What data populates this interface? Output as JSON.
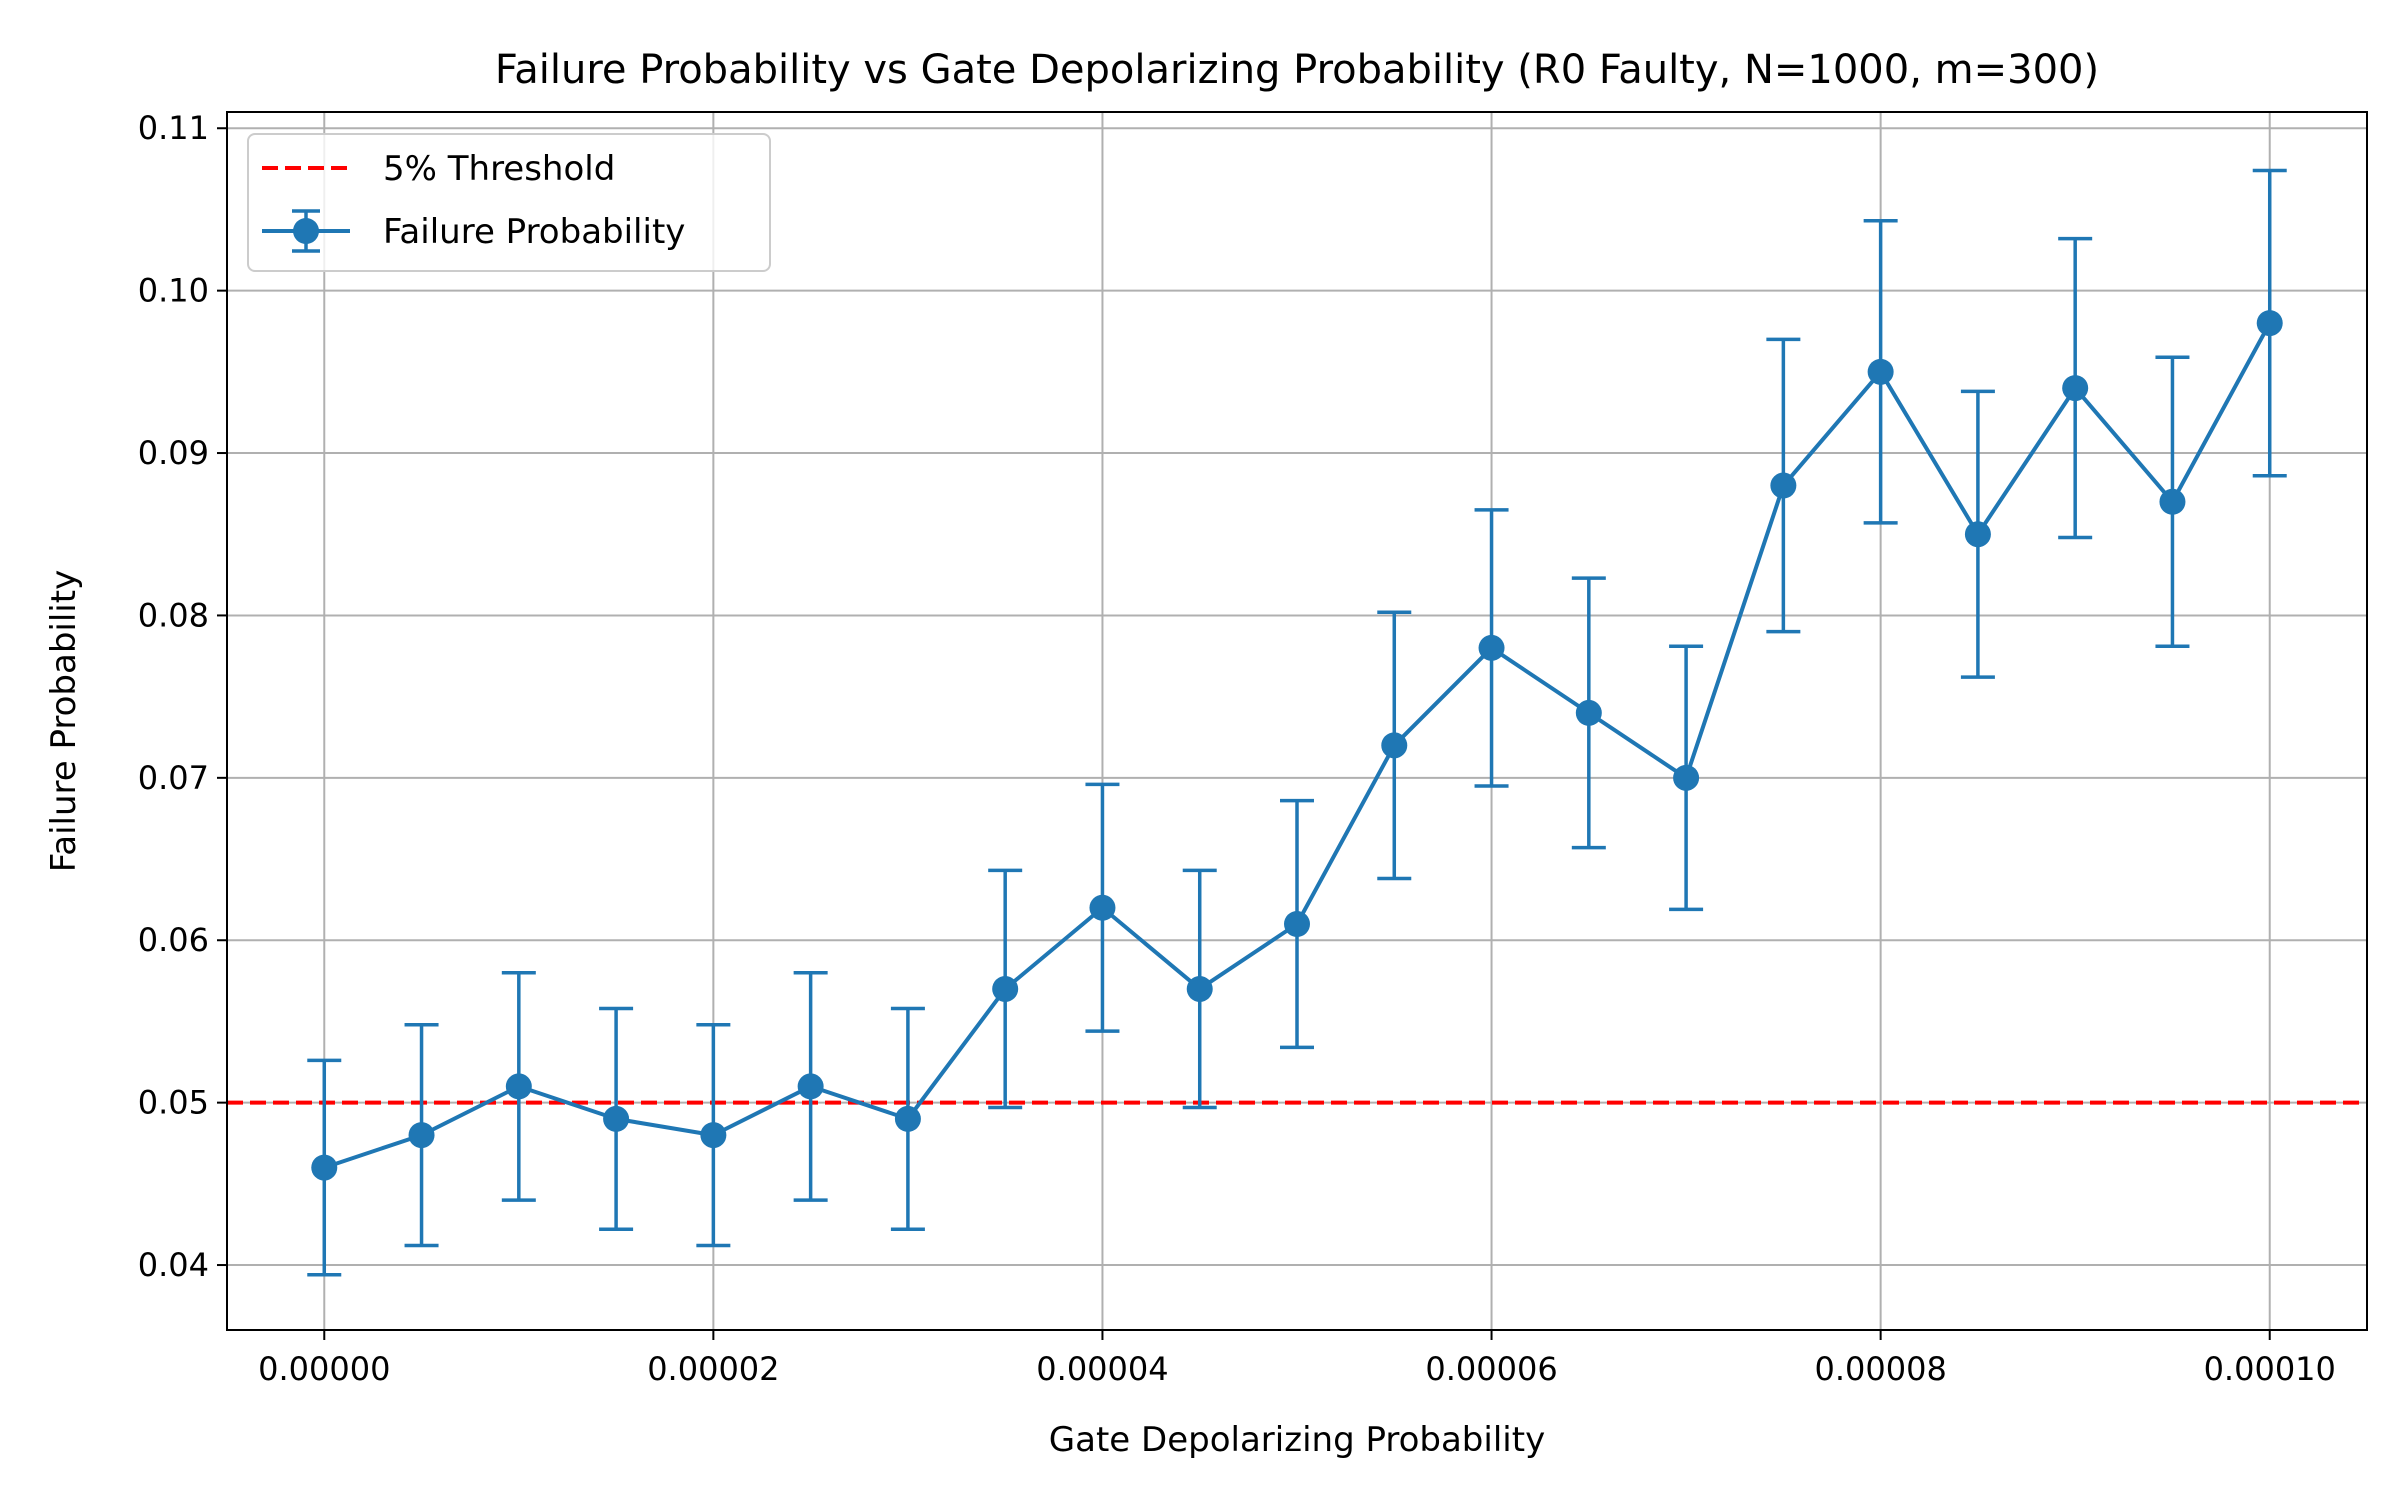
{
  "chart_data": {
    "type": "line",
    "title": "Failure Probability vs Gate Depolarizing Probability (R0 Faulty, N=1000, m=300)",
    "xlabel": "Gate Depolarizing Probability",
    "ylabel": "Failure Probability",
    "xlim": [
      -5e-06,
      0.000105
    ],
    "ylim": [
      0.036,
      0.111
    ],
    "grid": true,
    "legend_position": "upper-left",
    "x_ticks": [
      0,
      2e-05,
      4e-05,
      6e-05,
      8e-05,
      0.0001
    ],
    "x_tick_labels": [
      "0.00000",
      "0.00002",
      "0.00004",
      "0.00006",
      "0.00008",
      "0.00010"
    ],
    "y_ticks": [
      0.04,
      0.05,
      0.06,
      0.07,
      0.08,
      0.09,
      0.1,
      0.11
    ],
    "y_tick_labels": [
      "0.04",
      "0.05",
      "0.06",
      "0.07",
      "0.08",
      "0.09",
      "0.10",
      "0.11"
    ],
    "series": [
      {
        "name": "Failure Probability",
        "color": "#1f77b4",
        "marker": "circle",
        "x": [
          0,
          5e-06,
          1e-05,
          1.5e-05,
          2e-05,
          2.5e-05,
          3e-05,
          3.5e-05,
          4e-05,
          4.5e-05,
          5e-05,
          5.5e-05,
          6e-05,
          6.5e-05,
          7e-05,
          7.5e-05,
          8e-05,
          8.5e-05,
          9e-05,
          9.5e-05,
          0.0001
        ],
        "y": [
          0.046,
          0.048,
          0.051,
          0.049,
          0.048,
          0.051,
          0.049,
          0.057,
          0.062,
          0.057,
          0.061,
          0.072,
          0.078,
          0.074,
          0.07,
          0.088,
          0.095,
          0.085,
          0.094,
          0.087,
          0.098
        ],
        "error": [
          0.0066,
          0.0068,
          0.007,
          0.0068,
          0.0068,
          0.007,
          0.0068,
          0.0073,
          0.0076,
          0.0073,
          0.0076,
          0.0082,
          0.0085,
          0.0083,
          0.0081,
          0.009,
          0.0093,
          0.0088,
          0.0092,
          0.0089,
          0.0094
        ]
      }
    ],
    "reference_lines": [
      {
        "name": "5% Threshold",
        "y": 0.05,
        "color": "#ff0000",
        "style": "dashed"
      }
    ]
  }
}
